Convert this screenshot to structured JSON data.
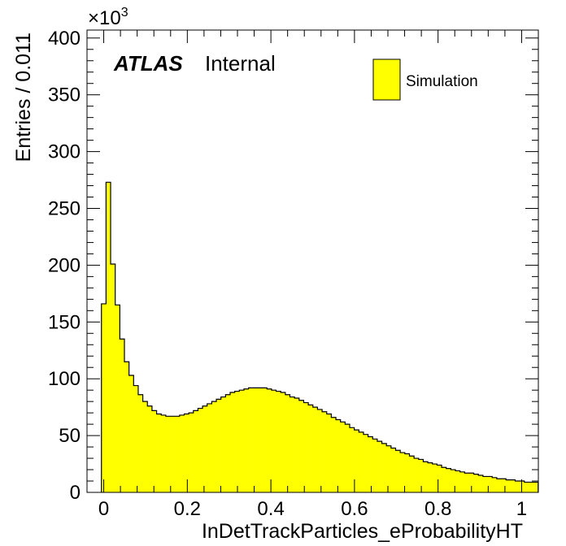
{
  "chart_data": {
    "type": "bar",
    "histogram": true,
    "xlabel": "InDetTrackParticles_eProbabilityHT",
    "ylabel": "Entries / 0.011",
    "y_multiplier": "×10",
    "y_multiplier_exp": "3",
    "xlim": [
      -0.04,
      1.04
    ],
    "ylim": [
      0,
      407
    ],
    "x_ticks": [
      0,
      0.2,
      0.4,
      0.6,
      0.8,
      1
    ],
    "x_tick_labels": [
      "0",
      "0.2",
      "0.4",
      "0.6",
      "0.8",
      "1"
    ],
    "y_ticks": [
      0,
      50,
      100,
      150,
      200,
      250,
      300,
      350,
      400
    ],
    "y_tick_labels": [
      "0",
      "50",
      "100",
      "150",
      "200",
      "250",
      "300",
      "350",
      "400"
    ],
    "bin_width": 0.011,
    "x_start": -0.0055,
    "values": [
      166,
      273,
      201,
      165,
      135,
      115,
      103,
      94,
      86,
      80,
      76,
      72,
      69,
      68,
      67,
      67,
      67,
      68,
      69,
      70,
      72,
      74,
      76,
      78,
      80,
      82,
      84,
      86,
      88,
      89,
      90,
      91,
      92,
      92,
      92,
      92,
      91,
      90,
      89,
      88,
      86,
      84,
      83,
      81,
      79,
      77,
      75,
      73,
      71,
      69,
      66,
      64,
      62,
      60,
      57,
      55,
      53,
      51,
      49,
      47,
      45,
      43,
      41,
      39,
      37,
      35,
      34,
      32,
      30,
      29,
      27,
      26,
      25,
      24,
      22,
      21,
      20,
      19,
      18,
      17,
      17,
      16,
      15,
      14,
      14,
      13,
      12,
      12,
      11,
      11,
      10,
      10,
      9,
      9,
      9
    ],
    "series": [
      {
        "name": "Simulation",
        "color": "#ffff00"
      }
    ],
    "legend": "top-right",
    "grid": false
  },
  "labels": {
    "atlas": "ATLAS",
    "internal": "Internal",
    "legend_entry": "Simulation"
  }
}
